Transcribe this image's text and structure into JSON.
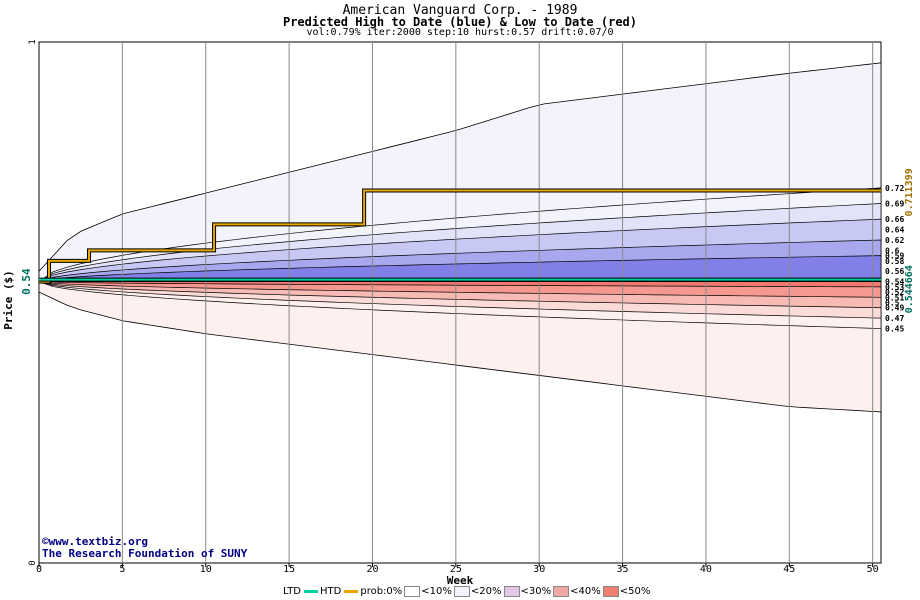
{
  "header": {
    "title": "American Vanguard Corp. - 1989",
    "subtitle": "Predicted High to Date (blue) &  Low to Date (red)",
    "params": "vol:0.79% iter:2000 step:10 hurst:0.57 drift:0.07/0"
  },
  "credit": {
    "line1": "©www.textbiz.org",
    "line2": "The Research Foundation of SUNY"
  },
  "legend": {
    "ltd": "LTD",
    "htd": "HTD",
    "prob": "prob:0%",
    "b10": "<10%",
    "b20": "<20%",
    "b30": "<30%",
    "b40": "<40%",
    "b50": "<50%"
  },
  "colors": {
    "ltd": "#00d0a0",
    "htd": "#e8a800",
    "blue": [
      "#f3f3fb",
      "#e2e2f8",
      "#c8c8f4",
      "#a8a8ee",
      "#8080e8"
    ],
    "red": [
      "#fdf0ee",
      "#fbdcd8",
      "#f8bab4",
      "#f49890",
      "#f07870"
    ]
  },
  "chart_data": {
    "type": "area",
    "title": "American Vanguard Corp. - 1989",
    "xlabel": "Week",
    "ylabel": "Price ($)",
    "xlim": [
      0,
      50.5
    ],
    "ylim": [
      0,
      1
    ],
    "xticks": [
      0,
      5,
      10,
      15,
      20,
      25,
      30,
      35,
      40,
      45,
      50
    ],
    "yticks": [
      0,
      1
    ],
    "grid": true,
    "start_price": 0.54,
    "right_labels": [
      0.72,
      0.69,
      0.66,
      0.64,
      0.62,
      0.6,
      0.59,
      0.58,
      0.56,
      0.54,
      0.53,
      0.52,
      0.51,
      0.5,
      0.49,
      0.47,
      0.45
    ],
    "ltd_value": 0.544664,
    "htd_value": 0.711399,
    "htd_steps": [
      [
        0,
        0.54
      ],
      [
        0.6,
        0.58
      ],
      [
        3,
        0.6
      ],
      [
        10.5,
        0.65
      ],
      [
        19.5,
        0.715
      ],
      [
        50.5,
        0.715
      ]
    ],
    "ltd_line": 0.544,
    "envelope": {
      "x": [
        0,
        2,
        5,
        10,
        15,
        20,
        25,
        30,
        35,
        40,
        45,
        50.5
      ],
      "high": [
        0.56,
        0.63,
        0.67,
        0.71,
        0.75,
        0.79,
        0.83,
        0.88,
        0.9,
        0.92,
        0.94,
        0.96
      ],
      "low": [
        0.52,
        0.49,
        0.465,
        0.44,
        0.42,
        0.4,
        0.38,
        0.36,
        0.34,
        0.32,
        0.3,
        0.29
      ]
    },
    "blue_bands": [
      {
        "prob": "<10%",
        "final": 0.72
      },
      {
        "prob": "<20%",
        "final": 0.69
      },
      {
        "prob": "<30%",
        "final": 0.66
      },
      {
        "prob": "<40%",
        "final": 0.62
      },
      {
        "prob": "<50%",
        "final": 0.59
      }
    ],
    "red_bands": [
      {
        "prob": "<10%",
        "final": 0.45
      },
      {
        "prob": "<20%",
        "final": 0.47
      },
      {
        "prob": "<30%",
        "final": 0.49
      },
      {
        "prob": "<40%",
        "final": 0.51
      },
      {
        "prob": "<50%",
        "final": 0.53
      }
    ]
  }
}
